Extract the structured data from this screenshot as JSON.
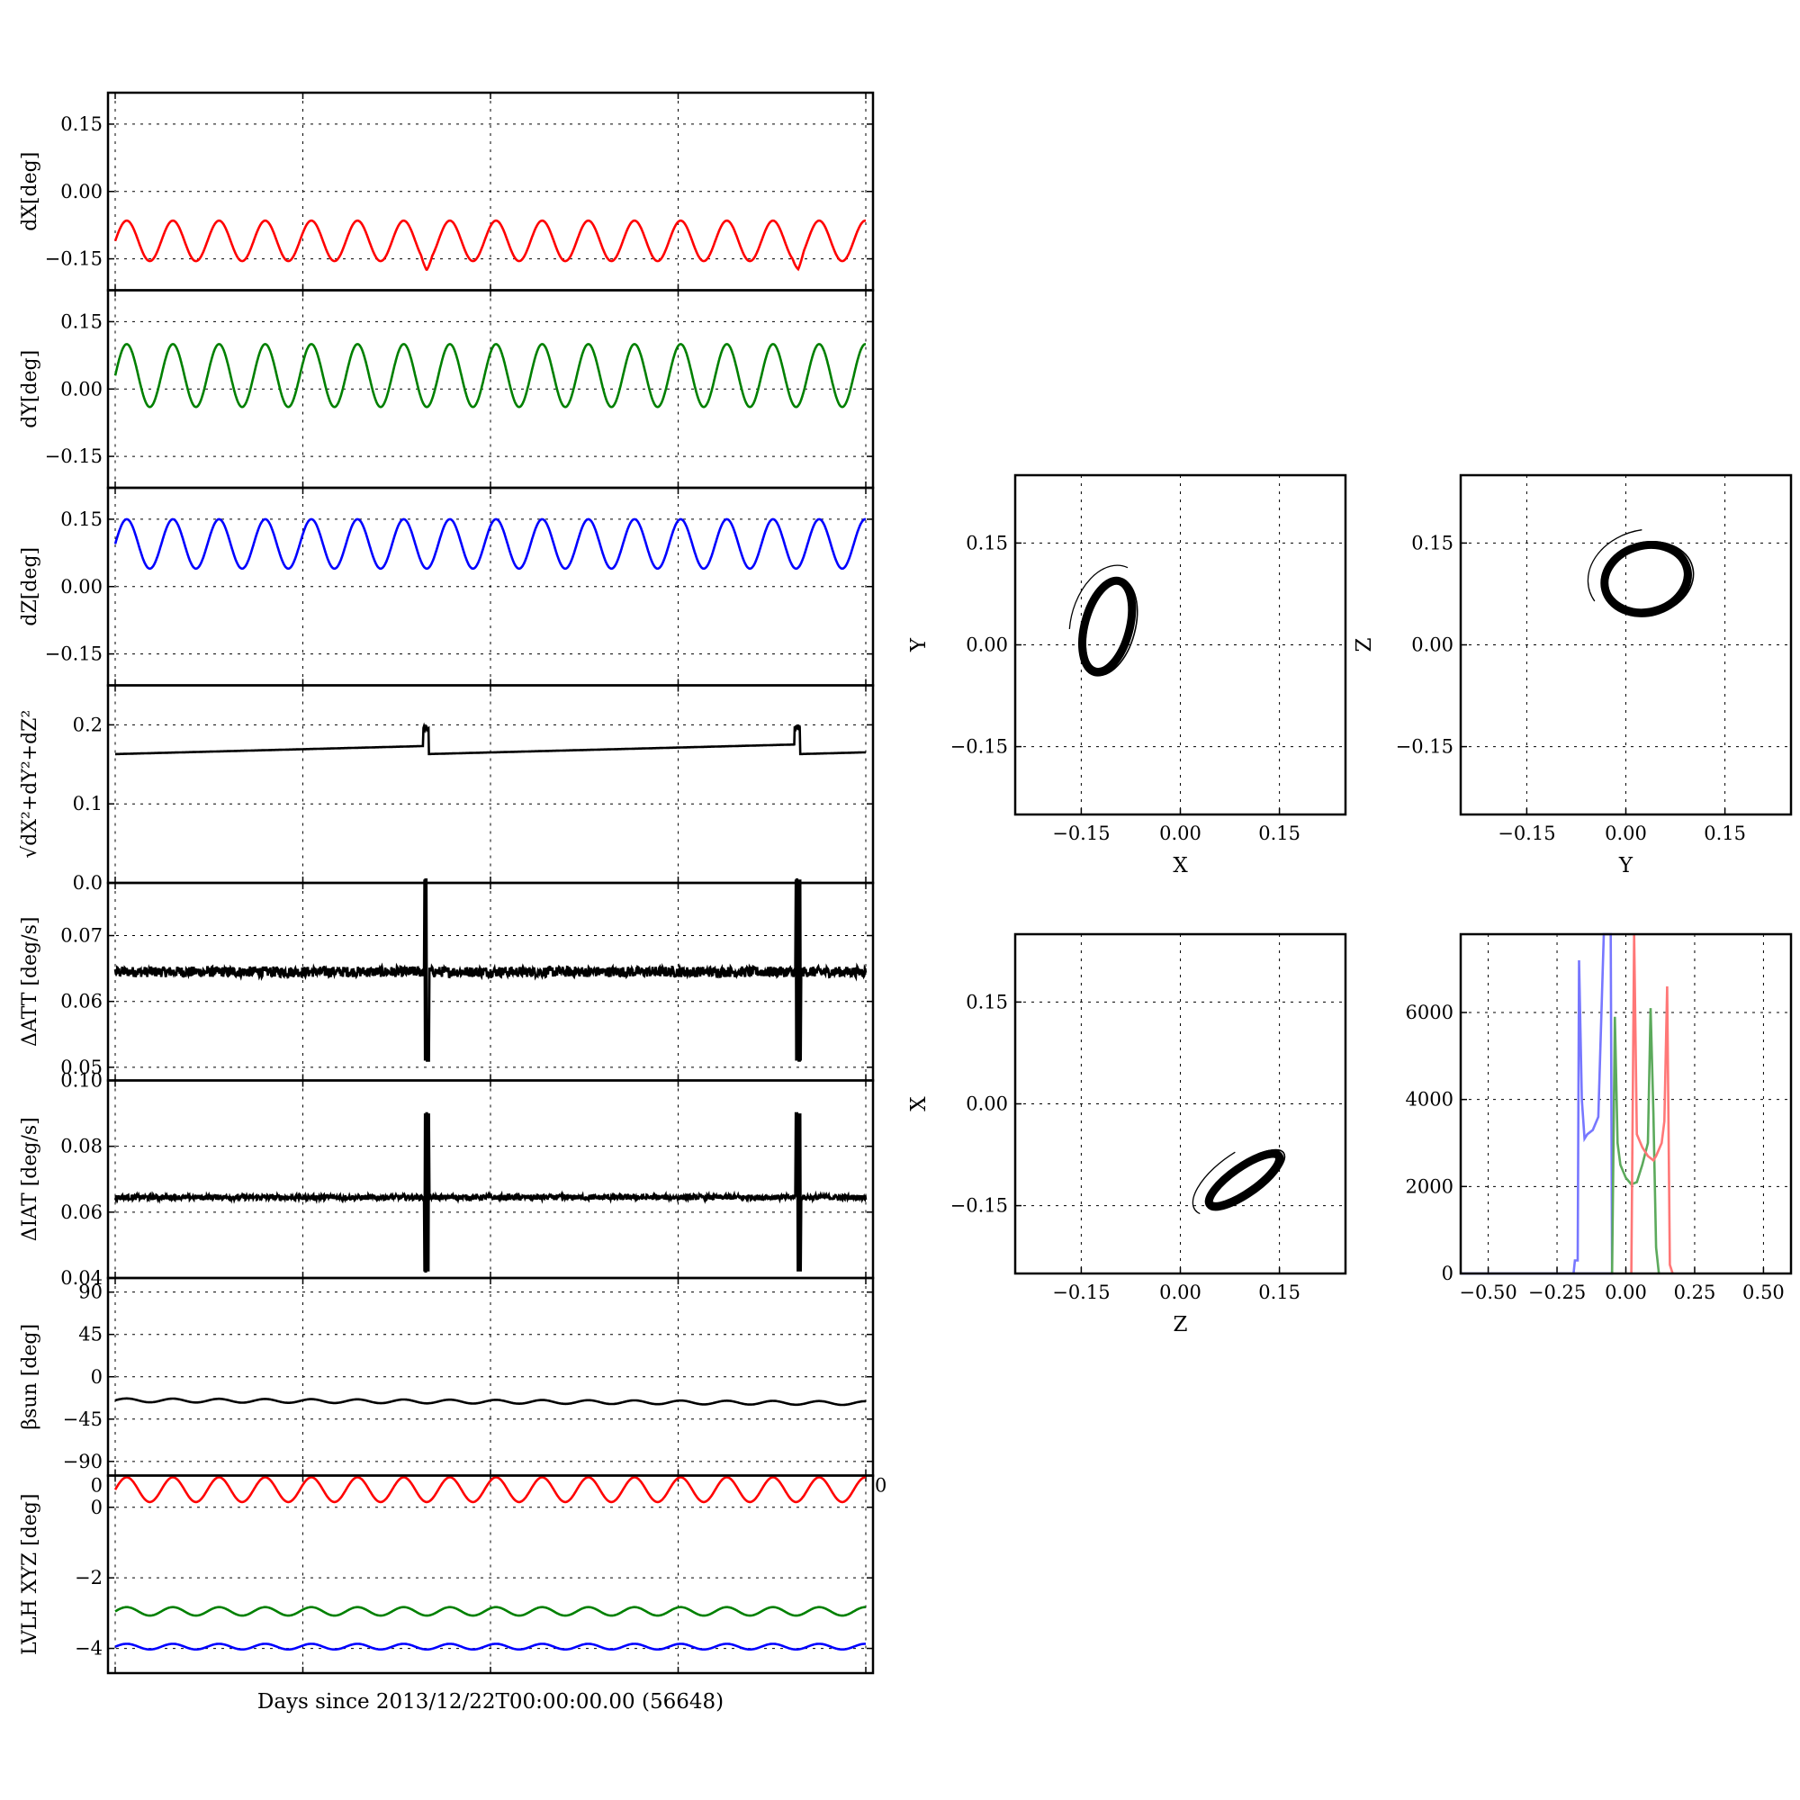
{
  "chart_data": {
    "timeseries": {
      "type": "line",
      "xlabel": "Days since 2013/12/22T00:00:00.00 (56648)",
      "x_range": [
        0,
        20
      ],
      "x_ticks": [
        0,
        5,
        10,
        15,
        20
      ],
      "panels": [
        {
          "id": "dx",
          "ylabel": "dX[deg]",
          "color": "#ff0000",
          "ylim": [
            -0.22,
            0.22
          ],
          "yticks": [
            0.15,
            0.0,
            -0.15
          ],
          "ytick_labels": [
            "0.15",
            "0.00",
            "−0.15"
          ],
          "signal": {
            "kind": "sine",
            "mean": -0.11,
            "amplitude": 0.045,
            "period_days": 1.23,
            "spikes_at_days": [
              8.3,
              18.2
            ]
          }
        },
        {
          "id": "dy",
          "ylabel": "dY[deg]",
          "color": "#008000",
          "ylim": [
            -0.22,
            0.22
          ],
          "yticks": [
            0.15,
            0.0,
            -0.15
          ],
          "ytick_labels": [
            "0.15",
            "0.00",
            "−0.15"
          ],
          "signal": {
            "kind": "sine",
            "mean": 0.03,
            "amplitude": 0.07,
            "period_days": 1.23
          }
        },
        {
          "id": "dz",
          "ylabel": "dZ[deg]",
          "color": "#0000ff",
          "ylim": [
            -0.22,
            0.22
          ],
          "yticks": [
            0.15,
            0.0,
            -0.15
          ],
          "ytick_labels": [
            "0.15",
            "0.00",
            "−0.15"
          ],
          "signal": {
            "kind": "sine",
            "mean": 0.095,
            "amplitude": 0.055,
            "period_days": 1.23
          }
        },
        {
          "id": "norm",
          "ylabel": "√dX²+dY²+dZ²",
          "color": "#000000",
          "ylim": [
            0.0,
            0.25
          ],
          "yticks": [
            0.2,
            0.1,
            0.0
          ],
          "ytick_labels": [
            "0.2",
            "0.1",
            "0.0"
          ],
          "signal": {
            "kind": "sawtooth",
            "start": 0.163,
            "end": 0.176,
            "drop_at_days": [
              8.3,
              18.2
            ],
            "drop_to": 0.163,
            "spike_to": 0.2
          }
        },
        {
          "id": "datt",
          "ylabel": "ΔATT [deg/s]",
          "color": "#000000",
          "ylim": [
            0.048,
            0.078
          ],
          "yticks": [
            0.07,
            0.06,
            0.05
          ],
          "ytick_labels": [
            "0.07",
            "0.06",
            "0.05"
          ],
          "signal": {
            "kind": "noise",
            "mean": 0.0645,
            "noise": 0.0008,
            "burst_at_days": [
              8.3,
              18.2
            ],
            "burst_min": 0.051,
            "burst_max": 0.0785
          }
        },
        {
          "id": "diat",
          "ylabel": "ΔIAT [deg/s]",
          "color": "#000000",
          "ylim": [
            0.04,
            0.1
          ],
          "yticks": [
            0.1,
            0.08,
            0.06,
            0.04
          ],
          "ytick_labels": [
            "0.10",
            "0.08",
            "0.06",
            "0.04"
          ],
          "signal": {
            "kind": "noise",
            "mean": 0.0645,
            "noise": 0.0008,
            "burst_at_days": [
              8.3,
              18.2
            ],
            "burst_min": 0.042,
            "burst_max": 0.09
          }
        },
        {
          "id": "beta",
          "ylabel": "βsun [deg]",
          "color": "#000000",
          "ylim": [
            -105,
            105
          ],
          "yticks": [
            90,
            45,
            0,
            -45,
            -90
          ],
          "ytick_labels": [
            "90",
            "45",
            "0",
            "−45",
            "−90"
          ],
          "signal": {
            "kind": "sine",
            "mean": -25,
            "trend": -3,
            "amplitude": 2,
            "period_days": 1.23
          }
        },
        {
          "id": "lvlh",
          "ylabel": "LVLH XYZ [deg]",
          "ylim": [
            -4.7,
            0.9
          ],
          "yticks": [
            0,
            -2,
            -4
          ],
          "ytick_labels": [
            "0",
            "−2",
            "−4"
          ],
          "series": [
            {
              "color": "#ff0000",
              "signal": {
                "kind": "sine",
                "mean": 0.5,
                "amplitude": 0.35,
                "period_days": 1.23
              }
            },
            {
              "color": "#008000",
              "signal": {
                "kind": "sine",
                "mean": -2.95,
                "amplitude": 0.12,
                "period_days": 1.23
              }
            },
            {
              "color": "#0000ff",
              "signal": {
                "kind": "sine",
                "mean": -3.95,
                "amplitude": 0.08,
                "period_days": 1.23
              }
            }
          ],
          "stray_ticks": [
            "0",
            "0"
          ]
        }
      ]
    },
    "scatter_panels": [
      {
        "id": "xy",
        "type": "scatter",
        "xlabel": "X",
        "ylabel": "Y",
        "xlim": [
          -0.25,
          0.25
        ],
        "ylim": [
          -0.25,
          0.25
        ],
        "ticks": [
          -0.15,
          0.0,
          0.15
        ],
        "tick_labels": [
          "−0.15",
          "0.00",
          "0.15"
        ],
        "ellipse": {
          "center": [
            -0.11,
            0.03
          ],
          "rx": 0.035,
          "ry": 0.07,
          "tilt_deg": 15
        }
      },
      {
        "id": "yz",
        "type": "scatter",
        "xlabel": "Y",
        "ylabel": "Z",
        "xlim": [
          -0.25,
          0.25
        ],
        "ylim": [
          -0.25,
          0.25
        ],
        "ticks": [
          -0.15,
          0.0,
          0.15
        ],
        "tick_labels": [
          "−0.15",
          "0.00",
          "0.15"
        ],
        "ellipse": {
          "center": [
            0.03,
            0.1
          ],
          "rx": 0.065,
          "ry": 0.05,
          "tilt_deg": -15
        }
      },
      {
        "id": "zx",
        "type": "scatter",
        "xlabel": "Z",
        "ylabel": "X",
        "xlim": [
          -0.25,
          0.25
        ],
        "ylim": [
          -0.25,
          0.25
        ],
        "ticks": [
          -0.15,
          0.0,
          0.15
        ],
        "tick_labels": [
          "−0.15",
          "0.00",
          "0.15"
        ],
        "ellipse": {
          "center": [
            0.095,
            -0.11
          ],
          "rx": 0.065,
          "ry": 0.02,
          "tilt_deg": -35
        }
      }
    ],
    "histogram": {
      "type": "line",
      "xlim": [
        -0.6,
        0.6
      ],
      "ylim": [
        0,
        7800
      ],
      "xticks": [
        -0.5,
        -0.25,
        0.0,
        0.25,
        0.5
      ],
      "xtick_labels": [
        "−0.50",
        "−0.25",
        "0.00",
        "0.25",
        "0.50"
      ],
      "yticks": [
        0,
        2000,
        4000,
        6000
      ],
      "ytick_labels": [
        "0",
        "2000",
        "4000",
        "6000"
      ],
      "series": [
        {
          "color": "#7777ff",
          "x": [
            -0.6,
            -0.19,
            -0.185,
            -0.175,
            -0.17,
            -0.16,
            -0.15,
            -0.14,
            -0.12,
            -0.1,
            -0.08,
            -0.07,
            -0.055,
            -0.05,
            -0.6
          ],
          "y": [
            0,
            0,
            300,
            300,
            7200,
            4000,
            3100,
            3200,
            3300,
            3600,
            7800,
            7800,
            7800,
            0,
            0
          ]
        },
        {
          "color": "#5caa5c",
          "x": [
            -0.05,
            -0.04,
            -0.03,
            -0.02,
            0.0,
            0.02,
            0.04,
            0.06,
            0.08,
            0.09,
            0.1,
            0.11,
            0.12
          ],
          "y": [
            0,
            5900,
            3000,
            2500,
            2200,
            2050,
            2100,
            2500,
            3000,
            6100,
            3700,
            600,
            0
          ]
        },
        {
          "color": "#ff7777",
          "x": [
            0.02,
            0.03,
            0.04,
            0.06,
            0.08,
            0.1,
            0.11,
            0.13,
            0.14,
            0.15,
            0.16,
            0.17
          ],
          "y": [
            0,
            7800,
            3200,
            2900,
            2700,
            2600,
            2700,
            3000,
            3500,
            6600,
            200,
            0
          ]
        }
      ]
    }
  }
}
